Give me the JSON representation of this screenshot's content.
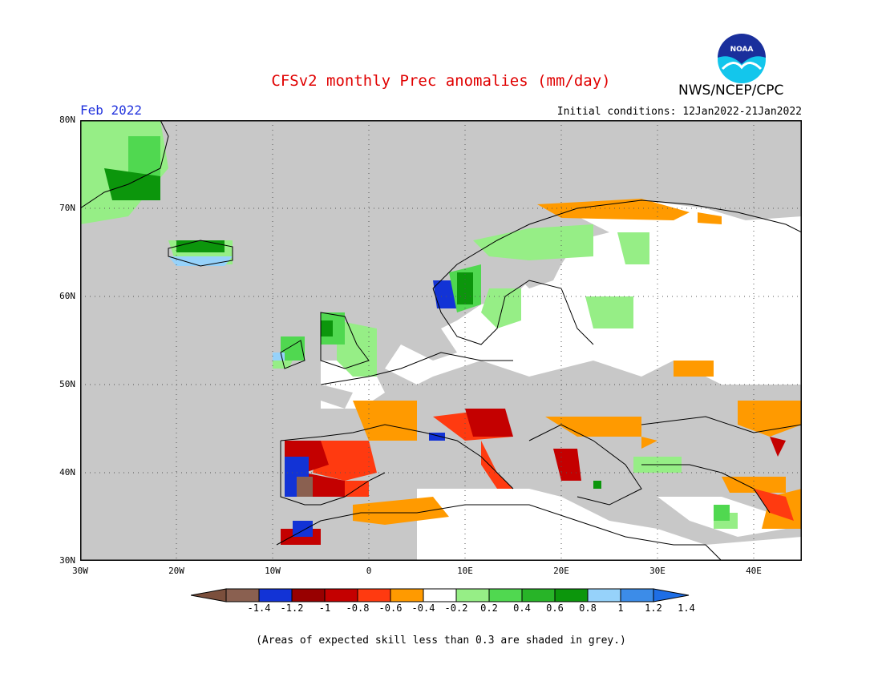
{
  "header": {
    "title": "CFSv2 monthly Prec anomalies (mm/day)",
    "month": "Feb 2022",
    "initial_conditions": "Initial conditions: 12Jan2022-21Jan2022",
    "org": "NWS/NCEP/CPC",
    "logo_text": "NOAA"
  },
  "map": {
    "lat_labels": [
      "80N",
      "70N",
      "60N",
      "50N",
      "40N",
      "30N"
    ],
    "lon_labels": [
      "30W",
      "20W",
      "10W",
      "0",
      "10E",
      "20E",
      "30E",
      "40E"
    ]
  },
  "colorbar": {
    "ticks": [
      "-1.4",
      "-1.2",
      "-1",
      "-0.8",
      "-0.6",
      "-0.4",
      "-0.2",
      "0.2",
      "0.4",
      "0.6",
      "0.8",
      "1",
      "1.2",
      "1.4"
    ],
    "colors": [
      "#7b4f3c",
      "#8a6050",
      "#1233d6",
      "#980000",
      "#c40000",
      "#ff3a10",
      "#ff9a00",
      "#ffffff",
      "#96ee86",
      "#50d850",
      "#28b428",
      "#0c960c",
      "#96d2fa",
      "#3c8ce8",
      "#1e6ee6"
    ]
  },
  "legend_colors": {
    "grey_low_skill": "#c8c8c8",
    "white_neutral": "#ffffff",
    "land_border": "#000000"
  },
  "note": "(Areas of expected skill less than 0.3 are shaded in grey.)"
}
